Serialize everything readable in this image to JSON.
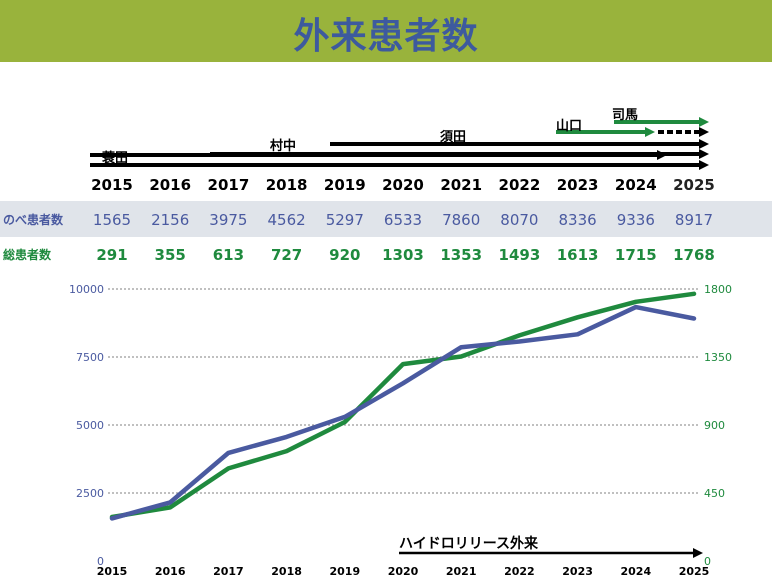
{
  "page": {
    "title": "外来患者数"
  },
  "colors": {
    "header_bg": "#99b33c",
    "title": "#3d5a9e",
    "blue": "#4a5aa0",
    "green": "#1f8a3e",
    "arrow_black": "#000000",
    "grid": "#9a9a9a",
    "band": "#e0e4ea"
  },
  "table": {
    "years": [
      "2015",
      "2016",
      "2017",
      "2018",
      "2019",
      "2020",
      "2021",
      "2022",
      "2023",
      "2024",
      "2025"
    ],
    "rows": [
      {
        "label": "のべ患者数",
        "values": [
          "1565",
          "2156",
          "3975",
          "4562",
          "5297",
          "6533",
          "7860",
          "8070",
          "8336",
          "9336",
          "8917"
        ]
      },
      {
        "label": "総患者数",
        "values": [
          "291",
          "355",
          "613",
          "727",
          "920",
          "1303",
          "1353",
          "1493",
          "1613",
          "1715",
          "1768"
        ]
      }
    ]
  },
  "timeline": [
    {
      "name": "蓑田",
      "start": "2015",
      "end": "2025",
      "color": "#000000",
      "style": "solid"
    },
    {
      "name": "蓑田",
      "start": "2015",
      "end": "2024",
      "color": "#000000",
      "style": "solid"
    },
    {
      "name": "村中",
      "start": "2017",
      "end": "2025",
      "color": "#000000",
      "style": "solid"
    },
    {
      "name": "須田",
      "start": "2019",
      "end": "2025",
      "color": "#000000",
      "style": "solid"
    },
    {
      "name": "山口",
      "start": "2023",
      "end": "2024",
      "color": "#1f8a3e",
      "style": "solid"
    },
    {
      "name": "山口",
      "start": "2024",
      "end": "2025",
      "color": "#000000",
      "style": "dashed"
    },
    {
      "name": "司馬",
      "start": "2024",
      "end": "2025",
      "color": "#1f8a3e",
      "style": "solid"
    }
  ],
  "chart_data": {
    "type": "line",
    "x": [
      "2015",
      "2016",
      "2017",
      "2018",
      "2019",
      "2020",
      "2021",
      "2022",
      "2023",
      "2024",
      "2025"
    ],
    "series": [
      {
        "name": "のべ患者数",
        "axis": "left",
        "color": "#4a5aa0",
        "values": [
          1565,
          2156,
          3975,
          4562,
          5297,
          6533,
          7860,
          8070,
          8336,
          9336,
          8917
        ]
      },
      {
        "name": "総患者数",
        "axis": "right",
        "color": "#1f8a3e",
        "values": [
          291,
          355,
          613,
          727,
          920,
          1303,
          1353,
          1493,
          1613,
          1715,
          1768
        ]
      }
    ],
    "y_left": {
      "min": 0,
      "max": 10000,
      "ticks": [
        "0",
        "2500",
        "5000",
        "7500",
        "10000"
      ]
    },
    "y_right": {
      "min": 0,
      "max": 1800,
      "ticks": [
        "0",
        "450",
        "900",
        "1350",
        "1800"
      ]
    },
    "grid": "horizontal-dotted",
    "annotation": {
      "text": "ハイドロリリース外来",
      "start": "2020",
      "end": "2025"
    }
  }
}
